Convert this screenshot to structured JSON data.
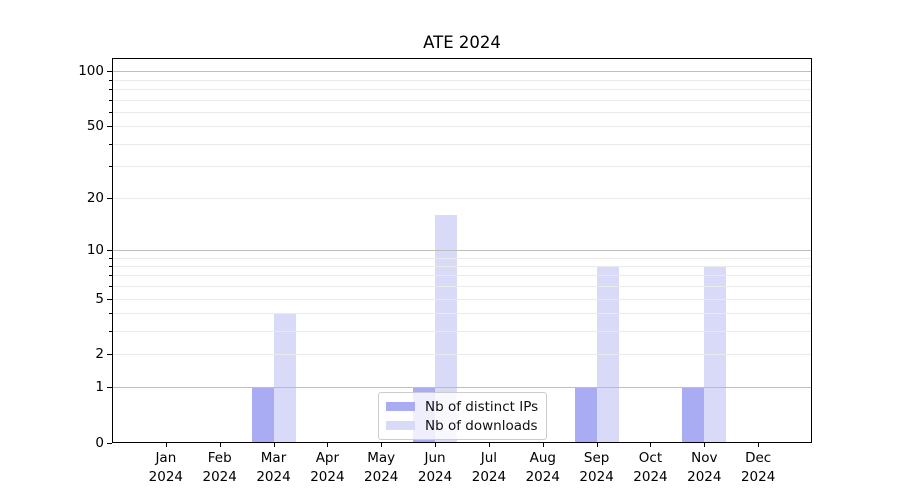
{
  "chart_data": {
    "type": "bar",
    "title": "ATE 2024",
    "categories": [
      "Jan",
      "Feb",
      "Mar",
      "Apr",
      "May",
      "Jun",
      "Jul",
      "Aug",
      "Sep",
      "Oct",
      "Nov",
      "Dec"
    ],
    "x_year": "2024",
    "series": [
      {
        "name": "Nb of distinct IPs",
        "color": "#a9abf3",
        "values": [
          0,
          0,
          1,
          0,
          0,
          1,
          0,
          0,
          1,
          0,
          1,
          0
        ]
      },
      {
        "name": "Nb of downloads",
        "color": "#d9daf8",
        "values": [
          0,
          0,
          4,
          0,
          0,
          16,
          0,
          0,
          8,
          0,
          8,
          0
        ]
      }
    ],
    "yscale": "log1p",
    "yticks": [
      0,
      1,
      2,
      5,
      10,
      20,
      50,
      100
    ],
    "minor_yticks": [
      3,
      4,
      6,
      7,
      8,
      9,
      30,
      40,
      60,
      70,
      80,
      90
    ],
    "ylim": [
      0,
      118
    ],
    "xlabel": "",
    "ylabel": "",
    "grid": "both",
    "legend_position": "lower center"
  }
}
